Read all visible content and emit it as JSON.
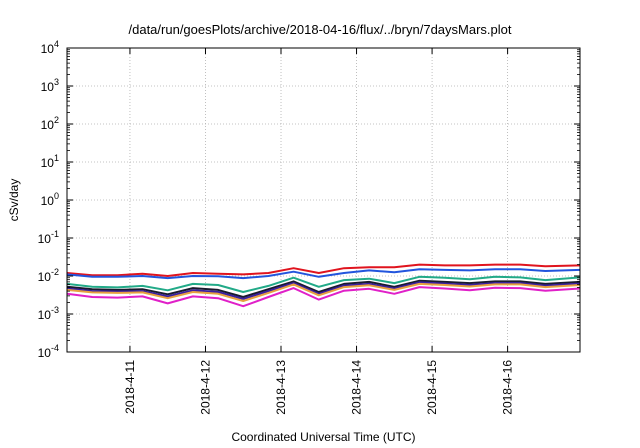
{
  "chart_data": {
    "type": "line",
    "title": "/data/run/goesPlots/archive/2018-04-16/flux/../bryn/7daysMars.plot",
    "xlabel": "Coordinated Universal Time (UTC)",
    "ylabel": "cSv/day",
    "y_scale": "log",
    "ylim": [
      0.0001,
      10000
    ],
    "y_ticks": [
      {
        "base": "10",
        "exp": "-4",
        "value": 0.0001
      },
      {
        "base": "10",
        "exp": "-3",
        "value": 0.001
      },
      {
        "base": "10",
        "exp": "-2",
        "value": 0.01
      },
      {
        "base": "10",
        "exp": "-1",
        "value": 0.1
      },
      {
        "base": "10",
        "exp": "0",
        "value": 1
      },
      {
        "base": "10",
        "exp": "1",
        "value": 10
      },
      {
        "base": "10",
        "exp": "2",
        "value": 100
      },
      {
        "base": "10",
        "exp": "3",
        "value": 1000
      },
      {
        "base": "10",
        "exp": "4",
        "value": 10000
      }
    ],
    "xlim": [
      "2018-04-10 04:00",
      "2018-04-16 23:00"
    ],
    "x_ticks": [
      "2018-4-11",
      "2018-4-12",
      "2018-4-13",
      "2018-4-14",
      "2018-4-15",
      "2018-4-16"
    ],
    "grid": true,
    "x": [
      "2018-04-10 04:00",
      "2018-04-10 12:00",
      "2018-04-10 20:00",
      "2018-04-11 04:00",
      "2018-04-11 12:00",
      "2018-04-11 20:00",
      "2018-04-12 04:00",
      "2018-04-12 12:00",
      "2018-04-12 20:00",
      "2018-04-13 04:00",
      "2018-04-13 12:00",
      "2018-04-13 20:00",
      "2018-04-14 04:00",
      "2018-04-14 12:00",
      "2018-04-14 20:00",
      "2018-04-15 04:00",
      "2018-04-15 12:00",
      "2018-04-15 20:00",
      "2018-04-16 04:00",
      "2018-04-16 12:00",
      "2018-04-16 23:00"
    ],
    "series": [
      {
        "color": "#e0141e",
        "values": [
          0.012,
          0.0105,
          0.0105,
          0.0115,
          0.01,
          0.012,
          0.0115,
          0.011,
          0.012,
          0.016,
          0.012,
          0.016,
          0.017,
          0.017,
          0.02,
          0.019,
          0.019,
          0.02,
          0.02,
          0.018,
          0.019
        ]
      },
      {
        "color": "#2255dd",
        "values": [
          0.011,
          0.0095,
          0.0095,
          0.01,
          0.0088,
          0.01,
          0.0098,
          0.0088,
          0.01,
          0.013,
          0.0095,
          0.012,
          0.014,
          0.0125,
          0.015,
          0.0145,
          0.014,
          0.015,
          0.015,
          0.0135,
          0.0145
        ]
      },
      {
        "color": "#22aa88",
        "values": [
          0.0062,
          0.0052,
          0.005,
          0.0055,
          0.0042,
          0.0062,
          0.0058,
          0.0038,
          0.0055,
          0.009,
          0.0052,
          0.0078,
          0.0085,
          0.0065,
          0.0095,
          0.009,
          0.0082,
          0.0095,
          0.0092,
          0.0078,
          0.0092
        ]
      },
      {
        "color": "#1a1a2e",
        "values": [
          0.0052,
          0.0045,
          0.0043,
          0.0045,
          0.0033,
          0.0048,
          0.0043,
          0.0028,
          0.0045,
          0.0072,
          0.0038,
          0.0062,
          0.007,
          0.0052,
          0.0075,
          0.007,
          0.0065,
          0.0072,
          0.0072,
          0.0062,
          0.007
        ]
      },
      {
        "color": "#3a20a0",
        "values": [
          0.0047,
          0.004,
          0.0039,
          0.004,
          0.0029,
          0.0042,
          0.0038,
          0.0025,
          0.004,
          0.0065,
          0.0034,
          0.0056,
          0.0062,
          0.0047,
          0.0068,
          0.0063,
          0.0058,
          0.0065,
          0.0065,
          0.0056,
          0.0063
        ]
      },
      {
        "color": "#e8a040",
        "values": [
          0.0043,
          0.0037,
          0.0036,
          0.0037,
          0.0026,
          0.0038,
          0.0034,
          0.0022,
          0.0036,
          0.006,
          0.0031,
          0.0051,
          0.0057,
          0.0043,
          0.0062,
          0.0058,
          0.0053,
          0.006,
          0.006,
          0.0051,
          0.0058
        ]
      },
      {
        "color": "#e020c8",
        "values": [
          0.0034,
          0.0028,
          0.0027,
          0.0029,
          0.0019,
          0.0029,
          0.0026,
          0.0016,
          0.0028,
          0.0048,
          0.0024,
          0.0041,
          0.0046,
          0.0034,
          0.0051,
          0.0047,
          0.0042,
          0.0049,
          0.0048,
          0.0041,
          0.0047
        ]
      }
    ]
  }
}
